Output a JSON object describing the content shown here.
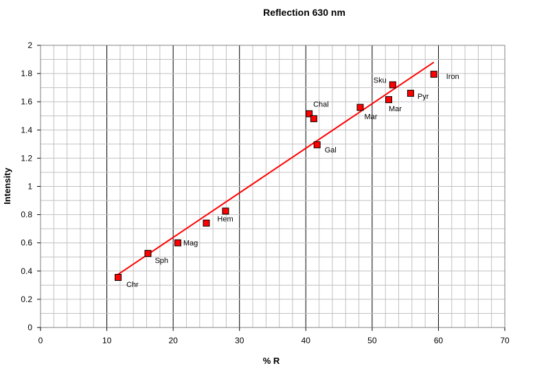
{
  "chart_data": {
    "type": "scatter",
    "title": "Reflection 630 nm",
    "xlabel": "% R",
    "ylabel": "Intensity",
    "xlim": [
      0,
      70
    ],
    "ylim": [
      0,
      2
    ],
    "x_ticks": [
      "0",
      "10",
      "20",
      "30",
      "40",
      "50",
      "60",
      "70"
    ],
    "y_ticks": [
      "0",
      "0.2",
      "0.4",
      "0.6",
      "0.8",
      "1",
      "1.2",
      "1.4",
      "1.6",
      "1.8",
      "2"
    ],
    "grid": true,
    "legend": "none",
    "colors": {
      "marker_fill": "#ff0000",
      "marker_stroke": "#000000",
      "trendline": "#ff0000",
      "major_grid": "#000000",
      "minor_grid": "#c0c0c0"
    },
    "points": [
      {
        "x": 11.7,
        "y": 0.355,
        "label": "Chr"
      },
      {
        "x": 16.2,
        "y": 0.525,
        "label": "Sph"
      },
      {
        "x": 20.7,
        "y": 0.6,
        "label": "Mag"
      },
      {
        "x": 25.0,
        "y": 0.74,
        "label": ""
      },
      {
        "x": 27.9,
        "y": 0.825,
        "label": "Hem"
      },
      {
        "x": 40.5,
        "y": 1.515,
        "label": "Chal"
      },
      {
        "x": 41.2,
        "y": 1.48,
        "label": ""
      },
      {
        "x": 41.7,
        "y": 1.295,
        "label": "Gal"
      },
      {
        "x": 48.2,
        "y": 1.56,
        "label": "Mar"
      },
      {
        "x": 52.5,
        "y": 1.615,
        "label": "Mar"
      },
      {
        "x": 53.1,
        "y": 1.72,
        "label": "Sku"
      },
      {
        "x": 55.8,
        "y": 1.66,
        "label": "Pyr"
      },
      {
        "x": 59.3,
        "y": 1.795,
        "label": "Iron"
      }
    ],
    "trendline": {
      "x": [
        11.5,
        59.3
      ],
      "y": [
        0.37,
        1.88
      ]
    }
  }
}
